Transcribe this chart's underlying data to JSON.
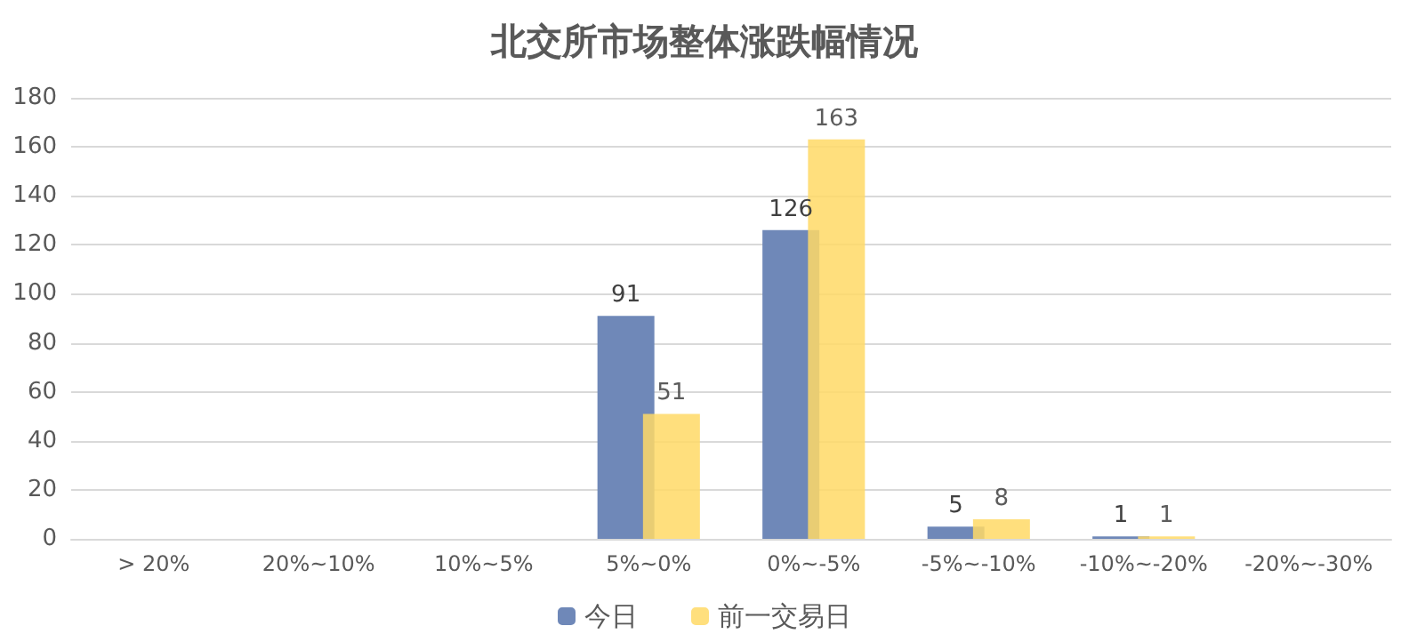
{
  "chart_data": {
    "type": "bar",
    "title": "北交所市场整体涨跌幅情况",
    "categories": [
      "> 20%",
      "20%~10%",
      "10%~5%",
      "5%~0%",
      "0%~-5%",
      "-5%~-10%",
      "-10%~-20%",
      "-20%~-30%"
    ],
    "series": [
      {
        "name": "今日",
        "color": "#6f88b8",
        "values": [
          0,
          0,
          0,
          91,
          126,
          5,
          1,
          0
        ],
        "value_labels": [
          null,
          null,
          null,
          "91",
          "126",
          "5",
          "1",
          null
        ]
      },
      {
        "name": "前一交易日",
        "color": "#ffd966",
        "values": [
          0,
          0,
          0,
          51,
          163,
          8,
          1,
          0
        ],
        "value_labels": [
          null,
          null,
          null,
          "51",
          "163",
          "8",
          "1",
          null
        ]
      }
    ],
    "ylim": [
      0,
      180
    ],
    "yticks": [
      0,
      20,
      40,
      60,
      80,
      100,
      120,
      140,
      160,
      180
    ],
    "grid": "y",
    "legend": "bottom"
  }
}
